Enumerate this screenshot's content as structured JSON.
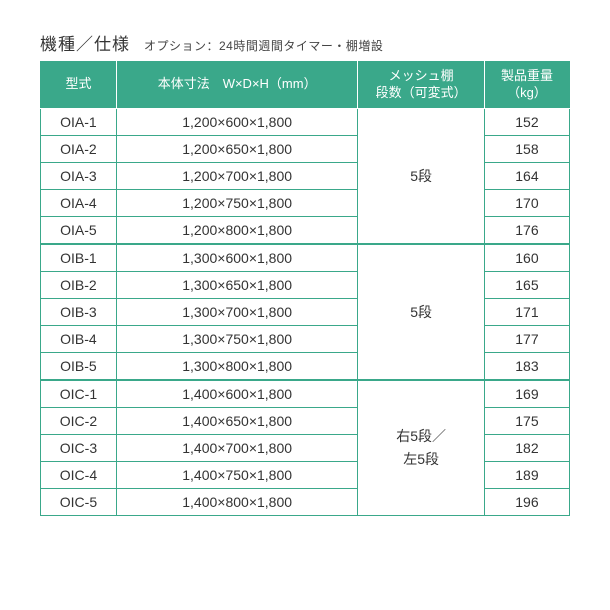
{
  "title": "機種／仕様",
  "subtitle": "オプション：24時間週間タイマー・棚増設",
  "headers": {
    "model": "型式",
    "dimensions": "本体寸法　W×D×H（mm）",
    "shelf_l1": "メッシュ棚",
    "shelf_l2": "段数（可変式）",
    "weight_l1": "製品重量",
    "weight_l2": "（kg）"
  },
  "groups": [
    {
      "shelf": "5段",
      "rows": [
        {
          "model": "OIA-1",
          "dims": "1,200×600×1,800",
          "weight": "152"
        },
        {
          "model": "OIA-2",
          "dims": "1,200×650×1,800",
          "weight": "158"
        },
        {
          "model": "OIA-3",
          "dims": "1,200×700×1,800",
          "weight": "164"
        },
        {
          "model": "OIA-4",
          "dims": "1,200×750×1,800",
          "weight": "170"
        },
        {
          "model": "OIA-5",
          "dims": "1,200×800×1,800",
          "weight": "176"
        }
      ]
    },
    {
      "shelf": "5段",
      "rows": [
        {
          "model": "OIB-1",
          "dims": "1,300×600×1,800",
          "weight": "160"
        },
        {
          "model": "OIB-2",
          "dims": "1,300×650×1,800",
          "weight": "165"
        },
        {
          "model": "OIB-3",
          "dims": "1,300×700×1,800",
          "weight": "171"
        },
        {
          "model": "OIB-4",
          "dims": "1,300×750×1,800",
          "weight": "177"
        },
        {
          "model": "OIB-5",
          "dims": "1,300×800×1,800",
          "weight": "183"
        }
      ]
    },
    {
      "shelf": "右5段／\n左5段",
      "rows": [
        {
          "model": "OIC-1",
          "dims": "1,400×600×1,800",
          "weight": "169"
        },
        {
          "model": "OIC-2",
          "dims": "1,400×650×1,800",
          "weight": "175"
        },
        {
          "model": "OIC-3",
          "dims": "1,400×700×1,800",
          "weight": "182"
        },
        {
          "model": "OIC-4",
          "dims": "1,400×750×1,800",
          "weight": "189"
        },
        {
          "model": "OIC-5",
          "dims": "1,400×800×1,800",
          "weight": "196"
        }
      ]
    }
  ],
  "colors": {
    "accent": "#3aa88a",
    "text": "#333333",
    "bg": "#ffffff"
  }
}
